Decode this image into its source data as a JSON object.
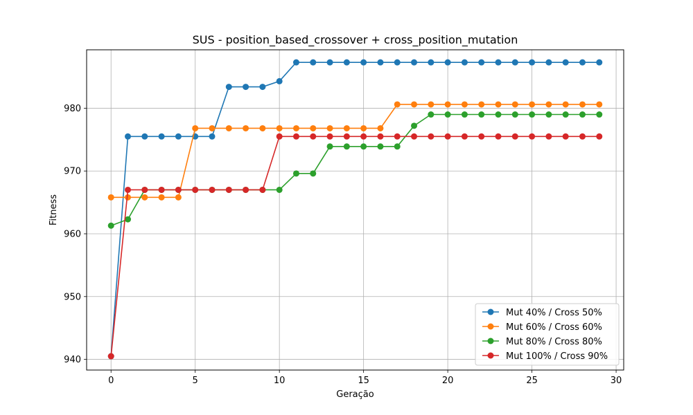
{
  "chart_data": {
    "type": "line",
    "title": "SUS - position_based_crossover + cross_position_mutation",
    "xlabel": "Geração",
    "ylabel": "Fitness",
    "xlim": [
      -1.45,
      30.45
    ],
    "ylim": [
      938.3,
      989.3
    ],
    "xticks": [
      0,
      5,
      10,
      15,
      20,
      25,
      30
    ],
    "yticks": [
      940,
      950,
      960,
      970,
      980
    ],
    "grid": true,
    "legend_position": "lower-right",
    "x": [
      0,
      1,
      2,
      3,
      4,
      5,
      6,
      7,
      8,
      9,
      10,
      11,
      12,
      13,
      14,
      15,
      16,
      17,
      18,
      19,
      20,
      21,
      22,
      23,
      24,
      25,
      26,
      27,
      28,
      29
    ],
    "series": [
      {
        "name": "Mut 40% / Cross 50%",
        "color": "#1f77b4",
        "values": [
          940.5,
          975.5,
          975.5,
          975.5,
          975.5,
          975.5,
          975.5,
          983.4,
          983.4,
          983.4,
          984.3,
          987.3,
          987.3,
          987.3,
          987.3,
          987.3,
          987.3,
          987.3,
          987.3,
          987.3,
          987.3,
          987.3,
          987.3,
          987.3,
          987.3,
          987.3,
          987.3,
          987.3,
          987.3,
          987.3
        ]
      },
      {
        "name": "Mut 60% / Cross 60%",
        "color": "#ff7f0e",
        "values": [
          965.8,
          965.8,
          965.8,
          965.8,
          965.8,
          976.8,
          976.8,
          976.8,
          976.8,
          976.8,
          976.8,
          976.8,
          976.8,
          976.8,
          976.8,
          976.8,
          976.8,
          980.6,
          980.6,
          980.6,
          980.6,
          980.6,
          980.6,
          980.6,
          980.6,
          980.6,
          980.6,
          980.6,
          980.6,
          980.6
        ]
      },
      {
        "name": "Mut 80% / Cross 80%",
        "color": "#2ca02c",
        "values": [
          961.3,
          962.3,
          967.0,
          967.0,
          967.0,
          967.0,
          967.0,
          967.0,
          967.0,
          967.0,
          967.0,
          969.6,
          969.6,
          973.9,
          973.9,
          973.9,
          973.9,
          973.9,
          977.2,
          979.0,
          979.0,
          979.0,
          979.0,
          979.0,
          979.0,
          979.0,
          979.0,
          979.0,
          979.0,
          979.0
        ]
      },
      {
        "name": "Mut 100% / Cross 90%",
        "color": "#d62728",
        "values": [
          940.5,
          967.0,
          967.0,
          967.0,
          967.0,
          967.0,
          967.0,
          967.0,
          967.0,
          967.0,
          975.5,
          975.5,
          975.5,
          975.5,
          975.5,
          975.5,
          975.5,
          975.5,
          975.5,
          975.5,
          975.5,
          975.5,
          975.5,
          975.5,
          975.5,
          975.5,
          975.5,
          975.5,
          975.5,
          975.5
        ]
      }
    ]
  }
}
